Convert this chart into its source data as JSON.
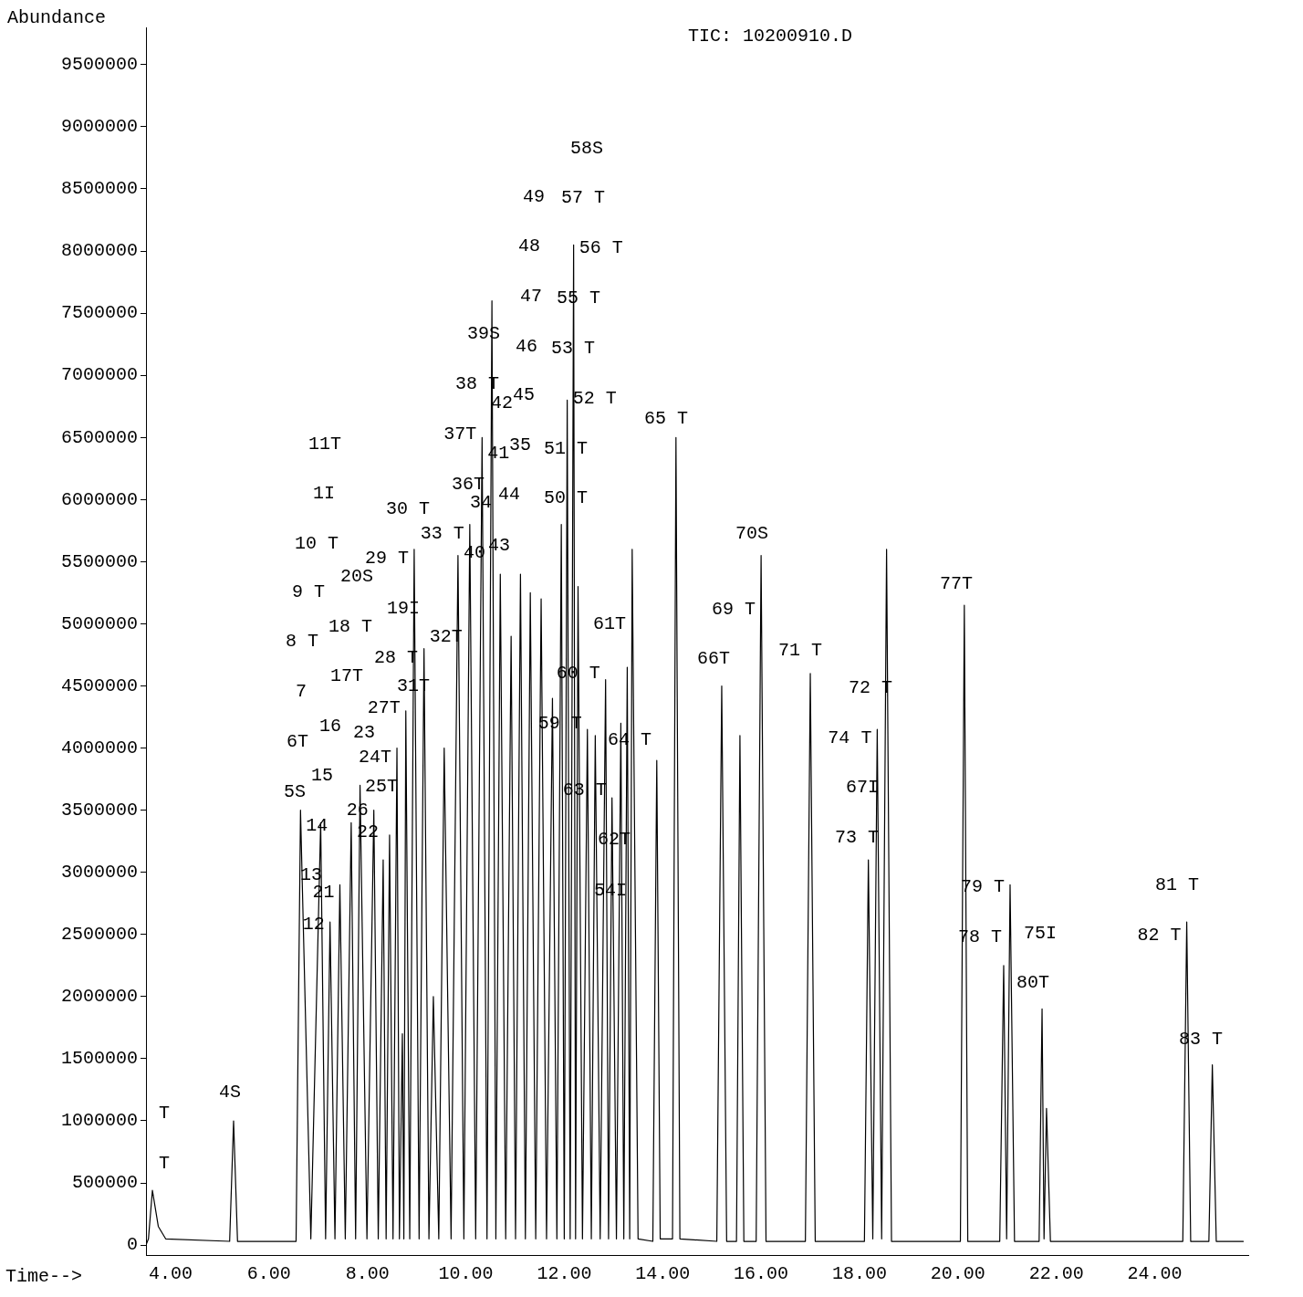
{
  "chart_data": {
    "type": "line",
    "title": "TIC: 10200910.D",
    "xlabel": "Time-->",
    "ylabel": "Abundance",
    "color": "#000000",
    "marker": "none",
    "grid": false,
    "legend": false,
    "xlim": [
      3.5,
      25.9
    ],
    "ylim": [
      -80000,
      9800000
    ],
    "xticks": [
      {
        "value": 4,
        "label": "4.00"
      },
      {
        "value": 6,
        "label": "6.00"
      },
      {
        "value": 8,
        "label": "8.00"
      },
      {
        "value": 10,
        "label": "10.00"
      },
      {
        "value": 12,
        "label": "12.00"
      },
      {
        "value": 14,
        "label": "14.00"
      },
      {
        "value": 16,
        "label": "16.00"
      },
      {
        "value": 18,
        "label": "18.00"
      },
      {
        "value": 20,
        "label": "20.00"
      },
      {
        "value": 22,
        "label": "22.00"
      },
      {
        "value": 24,
        "label": "24.00"
      }
    ],
    "yticks": [
      0,
      500000,
      1000000,
      1500000,
      2000000,
      2500000,
      3000000,
      3500000,
      4000000,
      4500000,
      5000000,
      5500000,
      6000000,
      6500000,
      7000000,
      7500000,
      8000000,
      8500000,
      9000000,
      9500000
    ],
    "x": [
      3.5,
      3.55,
      3.63,
      3.75,
      3.9,
      5.2,
      5.28,
      5.36,
      6.55,
      6.64,
      6.85,
      7.05,
      7.15,
      7.24,
      7.34,
      7.44,
      7.55,
      7.67,
      7.76,
      7.85,
      7.99,
      8.13,
      8.22,
      8.32,
      8.38,
      8.45,
      8.52,
      8.6,
      8.65,
      8.71,
      8.74,
      8.78,
      8.86,
      8.95,
      9.05,
      9.15,
      9.25,
      9.34,
      9.45,
      9.56,
      9.7,
      9.84,
      9.96,
      10.08,
      10.2,
      10.33,
      10.43,
      10.53,
      10.61,
      10.7,
      10.81,
      10.92,
      11.01,
      11.11,
      11.21,
      11.31,
      11.42,
      11.53,
      11.64,
      11.76,
      11.85,
      11.94,
      12.0,
      12.06,
      12.12,
      12.19,
      12.23,
      12.28,
      12.37,
      12.47,
      12.55,
      12.63,
      12.73,
      12.84,
      12.9,
      12.97,
      13.06,
      13.15,
      13.21,
      13.28,
      13.33,
      13.38,
      13.5,
      13.8,
      13.88,
      13.95,
      14.2,
      14.27,
      14.35,
      15.1,
      15.2,
      15.3,
      15.5,
      15.57,
      15.65,
      15.9,
      16.0,
      16.1,
      16.9,
      17.0,
      17.1,
      18.1,
      18.18,
      18.27,
      18.36,
      18.45,
      18.55,
      18.65,
      20.05,
      20.13,
      20.2,
      20.85,
      20.93,
      20.99,
      21.06,
      21.15,
      21.65,
      21.71,
      21.75,
      21.8,
      21.88,
      24.57,
      24.65,
      24.73,
      25.1,
      25.17,
      25.25,
      25.8
    ],
    "values": [
      0,
      50000,
      440000,
      150000,
      50000,
      30000,
      1000000,
      30000,
      30000,
      3500000,
      50000,
      3400000,
      50000,
      2600000,
      50000,
      2900000,
      50000,
      3400000,
      50000,
      3700000,
      50000,
      3500000,
      50000,
      3100000,
      50000,
      3300000,
      50000,
      4000000,
      50000,
      1700000,
      50000,
      4300000,
      50000,
      5600000,
      50000,
      4800000,
      50000,
      2000000,
      50000,
      4000000,
      50000,
      5550000,
      50000,
      5800000,
      50000,
      6500000,
      50000,
      7600000,
      50000,
      5400000,
      50000,
      4900000,
      50000,
      5400000,
      50000,
      5250000,
      50000,
      5200000,
      50000,
      4400000,
      50000,
      5800000,
      50000,
      6800000,
      50000,
      8050000,
      50000,
      5300000,
      50000,
      4150000,
      50000,
      4100000,
      50000,
      4550000,
      50000,
      3600000,
      50000,
      4200000,
      50000,
      4650000,
      50000,
      5600000,
      50000,
      30000,
      3900000,
      50000,
      50000,
      6500000,
      50000,
      30000,
      4500000,
      30000,
      30000,
      4100000,
      30000,
      30000,
      5550000,
      30000,
      30000,
      4600000,
      30000,
      30000,
      3100000,
      50000,
      4150000,
      50000,
      5600000,
      30000,
      30000,
      5150000,
      30000,
      30000,
      2250000,
      50000,
      2900000,
      30000,
      30000,
      1900000,
      50000,
      1100000,
      30000,
      30000,
      2600000,
      30000,
      30000,
      1450000,
      30000,
      30000
    ],
    "annotations": [
      "T",
      "T",
      "4S",
      "5S",
      "6T",
      "7",
      "8 T",
      "9 T",
      "10 T",
      "1I",
      "11T",
      "12",
      "13",
      "14",
      "15",
      "16",
      "17T",
      "18 T",
      "19I",
      "20S",
      "21",
      "22",
      "23",
      "24T",
      "25T",
      "26",
      "27T",
      "28 T",
      "29 T",
      "30 T",
      "31T",
      "32T",
      "33 T",
      "34",
      "35",
      "36T",
      "37T",
      "38 T",
      "39S",
      "40",
      "41",
      "42",
      "43",
      "44",
      "45",
      "46",
      "47",
      "48",
      "49",
      "50 T",
      "51 T",
      "52 T",
      "53 T",
      "55 T",
      "56 T",
      "57 T",
      "58S",
      "54I",
      "59 T",
      "60 T",
      "61T",
      "62T",
      "63 T",
      "64 T",
      "65 T",
      "66T",
      "67I",
      "69 T",
      "70S",
      "71 T",
      "72 T",
      "73 T",
      "74 T",
      "75I",
      "77T",
      "78 T",
      "79 T",
      "80T",
      "81 T",
      "82 T",
      "83 T"
    ]
  }
}
